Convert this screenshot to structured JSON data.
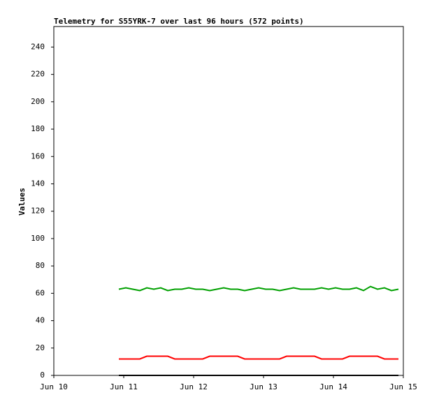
{
  "chart_data": {
    "type": "line",
    "title": "Telemetry for S55YRK-7 over last 96 hours (572 points)",
    "y_label": "Values",
    "x": [
      0.93,
      1.03,
      1.13,
      1.23,
      1.33,
      1.43,
      1.53,
      1.63,
      1.73,
      1.83,
      1.93,
      2.03,
      2.13,
      2.23,
      2.33,
      2.43,
      2.53,
      2.63,
      2.73,
      2.83,
      2.93,
      3.03,
      3.13,
      3.23,
      3.33,
      3.43,
      3.53,
      3.63,
      3.73,
      3.83,
      3.93,
      4.03,
      4.13,
      4.23,
      4.33,
      4.43,
      4.53,
      4.63,
      4.73,
      4.83,
      4.93
    ],
    "series": [
      {
        "color": "#00a000",
        "values": [
          63,
          64,
          63,
          62,
          64,
          63,
          64,
          62,
          63,
          63,
          64,
          63,
          63,
          62,
          63,
          64,
          63,
          63,
          62,
          63,
          64,
          63,
          63,
          62,
          63,
          64,
          63,
          63,
          63,
          64,
          63,
          64,
          63,
          63,
          64,
          62,
          65,
          63,
          64,
          62,
          63
        ]
      },
      {
        "color": "#ff0000",
        "values": [
          12,
          12,
          12,
          12,
          14,
          14,
          14,
          14,
          12,
          12,
          12,
          12,
          12,
          14,
          14,
          14,
          14,
          14,
          12,
          12,
          12,
          12,
          12,
          12,
          14,
          14,
          14,
          14,
          14,
          12,
          12,
          12,
          12,
          14,
          14,
          14,
          14,
          14,
          12,
          12,
          12
        ]
      },
      {
        "color": "#000000",
        "values": [
          0,
          0,
          0,
          0,
          0,
          0,
          0,
          0,
          0,
          0,
          0,
          0,
          0,
          0,
          0,
          0,
          0,
          0,
          0,
          0,
          0,
          0,
          0,
          0,
          0,
          0,
          0,
          0,
          0,
          0,
          0,
          0,
          0,
          0,
          0,
          0,
          0,
          0,
          0,
          0,
          0
        ]
      }
    ],
    "xlim": [
      0,
      5
    ],
    "xticks": [
      {
        "value": 0,
        "label": "Jun 10"
      },
      {
        "value": 1,
        "label": "Jun 11"
      },
      {
        "value": 2,
        "label": "Jun 12"
      },
      {
        "value": 3,
        "label": "Jun 13"
      },
      {
        "value": 4,
        "label": "Jun 14"
      },
      {
        "value": 5,
        "label": "Jun 15"
      }
    ],
    "ylim": [
      0,
      255
    ],
    "yticks": [
      0,
      20,
      40,
      60,
      80,
      100,
      120,
      140,
      160,
      180,
      200,
      220,
      240
    ]
  }
}
